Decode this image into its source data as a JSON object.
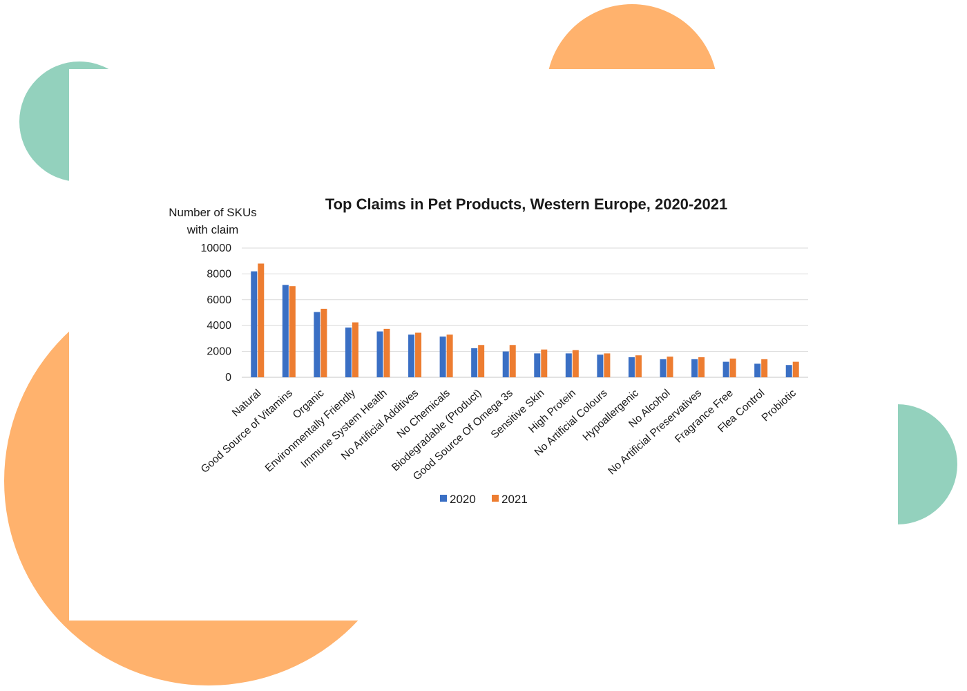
{
  "colors": {
    "series_2020": "#3a6fc4",
    "series_2021": "#ed7d31",
    "deco_teal": "#93d1bd",
    "deco_orange": "#ffb26d",
    "grid": "#d9d9d9"
  },
  "chart_data": {
    "type": "bar",
    "title": "Top Claims in Pet Products, Western Europe, 2020-2021",
    "ylabel_line1": "Number of SKUs",
    "ylabel_line2": "with claim",
    "xlabel": "",
    "ylim": [
      0,
      10000
    ],
    "yticks": [
      0,
      2000,
      4000,
      6000,
      8000,
      10000
    ],
    "grid": true,
    "legend_position": "bottom",
    "categories": [
      "Natural",
      "Good Source of Vitamins",
      "Organic",
      "Environmentally Friendly",
      "Immune System Health",
      "No Artificial Additives",
      "No Chemicals",
      "Biodegradable (Product)",
      "Good Source Of Omega 3s",
      "Sensitive Skin",
      "High Protein",
      "No Artificial Colours",
      "Hypoallergenic",
      "No Alcohol",
      "No Artificial Preservatives",
      "Fragrance Free",
      "Flea Control",
      "Probiotic"
    ],
    "series": [
      {
        "name": "2020",
        "values": [
          8200,
          7150,
          5050,
          3850,
          3550,
          3300,
          3150,
          2250,
          2000,
          1850,
          1850,
          1750,
          1550,
          1400,
          1400,
          1200,
          1050,
          950
        ]
      },
      {
        "name": "2021",
        "values": [
          8800,
          7050,
          5300,
          4250,
          3750,
          3450,
          3300,
          2500,
          2500,
          2150,
          2100,
          1850,
          1700,
          1600,
          1550,
          1450,
          1400,
          1200
        ]
      }
    ]
  }
}
